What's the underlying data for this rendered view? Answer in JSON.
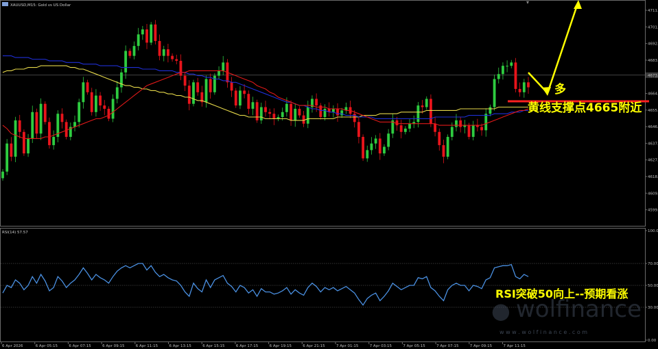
{
  "window": {
    "title": "XAUUSD,M15:  Gold vs US Dollar",
    "rsi_label": "RSI(14) 57.57"
  },
  "annotations": {
    "bull": "多",
    "support": "黄线支撑点4665附近",
    "rsi_note": "RSI突破50向上--预期看涨"
  },
  "watermark": {
    "brand": "wolfinance",
    "url": "w w w . w o l f i n a n c e . c o m"
  },
  "colors": {
    "bull_candle": "#2ecc40",
    "bear_candle": "#e8141b",
    "ma_fast": "#e01919",
    "ma_mid": "#1f2fd6",
    "ma_slow": "#e6d84a",
    "rsi_line": "#4a90e2",
    "annotation": "#ffff00",
    "support_line": "#ff2020"
  },
  "chart_data": [
    {
      "type": "candlestick",
      "symbol": "XAUUSD",
      "timeframe": "M15",
      "ylim": [
        4593,
        4718
      ],
      "yticks": [
        "4711.",
        "4701.",
        "4692.",
        "4683.",
        "4673.",
        "4664.",
        "4655.",
        "4646.",
        "4637.",
        "4627.",
        "4618.",
        "4609.",
        "4599."
      ],
      "current_price": "4673.",
      "xticks": [
        "6 Apr 2026",
        "6 Apr 05:15",
        "6 Apr 07:15",
        "6 Apr 09:15",
        "6 Apr 11:15",
        "6 Apr 13:15",
        "6 Apr 15:15",
        "6 Apr 17:15",
        "6 Apr 19:15",
        "6 Apr 21:15",
        "7 Apr 01:15",
        "7 Apr 03:15",
        "7 Apr 05:15",
        "7 Apr 07:15",
        "7 Apr 09:15",
        "7 Apr 11:15"
      ],
      "closes": [
        4620,
        4637,
        4629,
        4651,
        4644,
        4631,
        4640,
        4656,
        4643,
        4661,
        4650,
        4636,
        4641,
        4655,
        4650,
        4641,
        4647,
        4650,
        4662,
        4674,
        4668,
        4656,
        4666,
        4660,
        4658,
        4652,
        4664,
        4671,
        4680,
        4693,
        4690,
        4696,
        4703,
        4706,
        4698,
        4709,
        4699,
        4690,
        4694,
        4690,
        4688,
        4687,
        4678,
        4672,
        4661,
        4674,
        4668,
        4662,
        4676,
        4668,
        4678,
        4681,
        4686,
        4674,
        4669,
        4660,
        4669,
        4667,
        4658,
        4662,
        4651,
        4659,
        4656,
        4655,
        4652,
        4653,
        4656,
        4661,
        4651,
        4658,
        4654,
        4649,
        4659,
        4664,
        4660,
        4653,
        4658,
        4656,
        4658,
        4654,
        4657,
        4659,
        4655,
        4650,
        4641,
        4628,
        4633,
        4637,
        4640,
        4631,
        4635,
        4643,
        4651,
        4648,
        4644,
        4646,
        4649,
        4650,
        4660,
        4659,
        4664,
        4649,
        4644,
        4636,
        4629,
        4641,
        4647,
        4651,
        4647,
        4648,
        4641,
        4648,
        4647,
        4645,
        4655,
        4659,
        4676,
        4679,
        4684,
        4684,
        4686,
        4670,
        4668,
        4674,
        4671
      ],
      "ma_fast": [
        4648,
        4646,
        4643,
        4642,
        4641,
        4640,
        4640,
        4640,
        4640,
        4640,
        4641,
        4641,
        4642,
        4643,
        4644,
        4645,
        4646,
        4647,
        4648,
        4649,
        4650,
        4651,
        4652,
        4652,
        4653,
        4654,
        4656,
        4658,
        4660,
        4662,
        4664,
        4666,
        4668,
        4670,
        4672,
        4673,
        4674,
        4675,
        4676,
        4677,
        4678,
        4679,
        4680,
        4680,
        4681,
        4681,
        4681,
        4681,
        4681,
        4681,
        4681,
        4681,
        4681,
        4680,
        4679,
        4678,
        4677,
        4676,
        4675,
        4674,
        4672,
        4671,
        4670,
        4668,
        4667,
        4665,
        4664,
        4663,
        4662,
        4661,
        4660,
        4660,
        4660,
        4660,
        4659,
        4659,
        4659,
        4658,
        4658,
        4658,
        4658,
        4657,
        4657,
        4656,
        4655,
        4654,
        4653,
        4652,
        4651,
        4650,
        4650,
        4650,
        4650,
        4649,
        4649,
        4649,
        4649,
        4649,
        4649,
        4649,
        4649,
        4649,
        4649,
        4648,
        4648,
        4648,
        4648,
        4648,
        4648,
        4648,
        4648,
        4648,
        4648,
        4648,
        4649,
        4650,
        4651,
        4652,
        4653,
        4654,
        4655,
        4656,
        4657,
        4657,
        4658
      ],
      "ma_mid": [
        4690,
        4690,
        4690,
        4689,
        4689,
        4689,
        4689,
        4688,
        4688,
        4688,
        4688,
        4687,
        4687,
        4687,
        4687,
        4686,
        4686,
        4686,
        4686,
        4685,
        4685,
        4685,
        4685,
        4684,
        4684,
        4684,
        4684,
        4684,
        4683,
        4683,
        4683,
        4683,
        4683,
        4682,
        4682,
        4682,
        4682,
        4681,
        4681,
        4681,
        4681,
        4680,
        4680,
        4680,
        4679,
        4679,
        4678,
        4678,
        4677,
        4677,
        4676,
        4676,
        4675,
        4675,
        4674,
        4674,
        4673,
        4672,
        4671,
        4670,
        4669,
        4668,
        4667,
        4666,
        4665,
        4664,
        4663,
        4662,
        4662,
        4661,
        4660,
        4660,
        4659,
        4658,
        4658,
        4657,
        4657,
        4656,
        4656,
        4655,
        4655,
        4654,
        4654,
        4654,
        4653,
        4653,
        4653,
        4653,
        4652,
        4652,
        4652,
        4652,
        4652,
        4652,
        4652,
        4652,
        4652,
        4652,
        4652,
        4652,
        4652,
        4652,
        4653,
        4653,
        4653,
        4653,
        4653,
        4653,
        4653,
        4653,
        4654,
        4654,
        4654,
        4654,
        4654,
        4654,
        4655,
        4655,
        4655,
        4655,
        4656,
        4656,
        4656,
        4657,
        4657
      ],
      "ma_slow": [
        4680,
        4681,
        4681,
        4682,
        4682,
        4682,
        4683,
        4683,
        4683,
        4684,
        4684,
        4684,
        4684,
        4684,
        4684,
        4684,
        4683,
        4683,
        4682,
        4682,
        4681,
        4680,
        4679,
        4678,
        4677,
        4676,
        4675,
        4674,
        4673,
        4672,
        4672,
        4671,
        4671,
        4670,
        4670,
        4669,
        4669,
        4668,
        4668,
        4667,
        4667,
        4666,
        4666,
        4665,
        4665,
        4664,
        4663,
        4663,
        4662,
        4661,
        4660,
        4659,
        4658,
        4657,
        4656,
        4655,
        4654,
        4654,
        4653,
        4653,
        4653,
        4653,
        4652,
        4652,
        4652,
        4652,
        4652,
        4652,
        4651,
        4651,
        4651,
        4651,
        4652,
        4652,
        4652,
        4652,
        4652,
        4652,
        4652,
        4653,
        4653,
        4653,
        4653,
        4653,
        4653,
        4654,
        4654,
        4654,
        4654,
        4655,
        4655,
        4655,
        4655,
        4655,
        4656,
        4656,
        4656,
        4656,
        4656,
        4656,
        4657,
        4657,
        4657,
        4657,
        4657,
        4657,
        4657,
        4657,
        4658,
        4658,
        4658,
        4658,
        4658,
        4658,
        4658,
        4658,
        4658,
        4659,
        4659,
        4659,
        4659,
        4659,
        4659,
        4659,
        4659
      ]
    },
    {
      "type": "line",
      "name": "RSI(14)",
      "ylim": [
        0,
        100
      ],
      "yticks": [
        "100.0",
        "70.00",
        "50.00",
        "30.00",
        "0.00"
      ],
      "levels": [
        70,
        50,
        30
      ],
      "values": [
        43,
        50,
        48,
        55,
        52,
        46,
        50,
        58,
        52,
        60,
        54,
        45,
        48,
        58,
        54,
        48,
        52,
        55,
        60,
        66,
        61,
        55,
        60,
        57,
        55,
        52,
        58,
        63,
        66,
        68,
        66,
        68,
        70,
        70,
        64,
        68,
        62,
        58,
        60,
        57,
        55,
        54,
        50,
        44,
        40,
        52,
        47,
        44,
        55,
        48,
        55,
        57,
        59,
        52,
        49,
        44,
        50,
        48,
        43,
        46,
        40,
        47,
        44,
        44,
        42,
        43,
        45,
        48,
        42,
        46,
        43,
        41,
        48,
        52,
        49,
        44,
        48,
        46,
        48,
        45,
        47,
        49,
        46,
        43,
        37,
        32,
        38,
        41,
        43,
        36,
        40,
        45,
        52,
        49,
        46,
        48,
        50,
        50,
        57,
        56,
        58,
        48,
        45,
        40,
        36,
        46,
        50,
        52,
        50,
        50,
        45,
        50,
        49,
        47,
        55,
        57,
        66,
        67,
        68,
        68,
        69,
        58,
        56,
        60,
        58
      ]
    }
  ]
}
